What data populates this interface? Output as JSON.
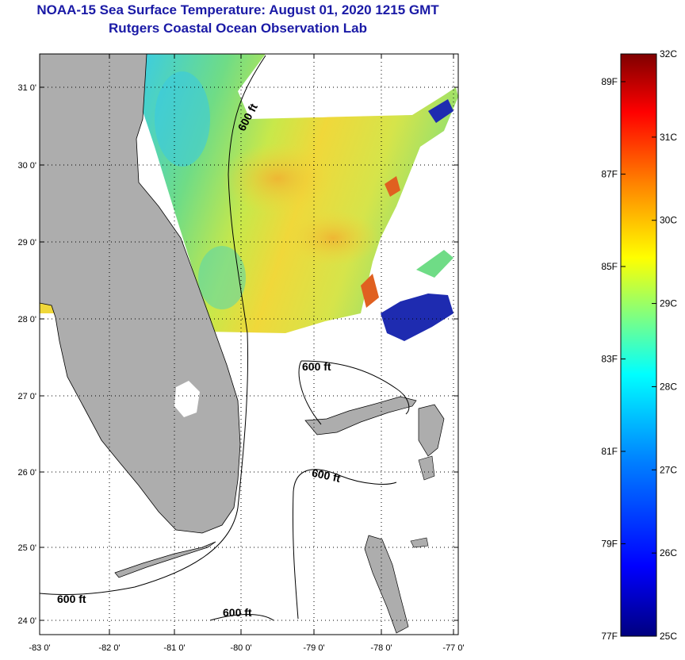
{
  "title": "NOAA-15 Sea Surface Temperature:  August 01, 2020 1215 GMT",
  "subtitle": "Rutgers Coastal Ocean Observation Lab",
  "map": {
    "lat_ticks": [
      "31 0'",
      "30 0'",
      "29 0'",
      "28 0'",
      "27 0'",
      "26 0'",
      "25 0'",
      "24 0'"
    ],
    "lon_ticks": [
      "-83 0'",
      "-82 0'",
      "-81 0'",
      "-80 0'",
      "-79 0'",
      "-78 0'",
      "-77 0'"
    ],
    "isobath_labels": [
      "600 ft",
      "600 ft",
      "600 ft",
      "600 ft",
      "600 ft"
    ],
    "grid": "dotted",
    "colors": {
      "land": "#adadad",
      "no_data": "#ffffff",
      "isobath": "#000000",
      "ocean_warm": "#f4e21a",
      "ocean_mid": "#7fe070",
      "ocean_cool": "#36c8e6"
    }
  },
  "colorbar": {
    "celsius_labels": [
      "32C",
      "31C",
      "30C",
      "29C",
      "28C",
      "27C",
      "26C",
      "25C"
    ],
    "fahrenheit_labels": [
      "89F",
      "87F",
      "85F",
      "83F",
      "81F",
      "79F",
      "77F"
    ],
    "range_c": [
      25,
      32
    ],
    "colors": [
      "#00007f",
      "#0000ff",
      "#0080ff",
      "#00ffff",
      "#80ff80",
      "#ffff00",
      "#ff8000",
      "#ff0000",
      "#7f0000"
    ]
  }
}
